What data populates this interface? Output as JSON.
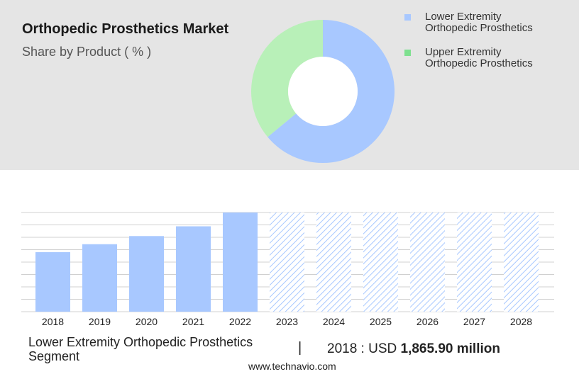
{
  "header": {
    "title": "Orthopedic Prosthetics Market",
    "subtitle": "Share by Product ( % )"
  },
  "legend": [
    {
      "label_line1": "Lower Extremity",
      "label_line2": "Orthopedic Prosthetics",
      "color": "#a8c8ff"
    },
    {
      "label_line1": "Upper Extremity",
      "label_line2": "Orthopedic Prosthetics",
      "color": "#7ee08f"
    }
  ],
  "footer": {
    "segment": "Lower Extremity Orthopedic Prosthetics Segment",
    "separator": "|",
    "year_prefix": "2018 : USD",
    "amount": "1,865.90 million",
    "website": "www.technavio.com"
  },
  "chart_data": [
    {
      "type": "pie",
      "donut": true,
      "slices": [
        {
          "label": "Lower Extremity Orthopedic Prosthetics",
          "value": 64,
          "color": "#a8c8ff"
        },
        {
          "label": "Upper Extremity Orthopedic Prosthetics",
          "value": 36,
          "color": "#b8f0b8"
        }
      ]
    },
    {
      "type": "bar",
      "categories": [
        "2018",
        "2019",
        "2020",
        "2021",
        "2022",
        "2023",
        "2024",
        "2025",
        "2026",
        "2027",
        "2028"
      ],
      "values": [
        1865.9,
        1915,
        1965,
        2025,
        2110,
        null,
        null,
        null,
        null,
        null,
        null
      ],
      "forecast_categories": [
        "2023",
        "2024",
        "2025",
        "2026",
        "2027",
        "2028"
      ],
      "bar_color": "#a8c8ff",
      "forecast_color": "#a8c8ff",
      "grid": true,
      "ylim": [
        1500,
        2110
      ]
    }
  ]
}
